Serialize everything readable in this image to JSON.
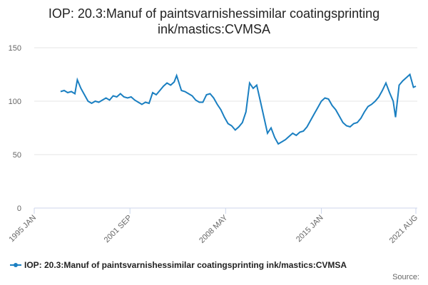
{
  "chart_data": {
    "type": "line",
    "title": "IOP: 20.3:Manuf of paintsvarnishessimilar coatingsprinting ink/mastics:CVMSA",
    "source": "Source:",
    "x": [
      "1996 NOV",
      "1997 FEB",
      "1997 MAY",
      "1997 AUG",
      "1997 NOV",
      "1998 JAN",
      "1998 APR",
      "1998 JUL",
      "1998 OCT",
      "1999 JAN",
      "1999 APR",
      "1999 JUL",
      "1999 OCT",
      "2000 JAN",
      "2000 APR",
      "2000 JUL",
      "2000 OCT",
      "2001 JAN",
      "2001 APR",
      "2001 JUL",
      "2001 OCT",
      "2002 JAN",
      "2002 APR",
      "2002 JUL",
      "2002 OCT",
      "2003 JAN",
      "2003 APR",
      "2003 JUL",
      "2003 OCT",
      "2004 JAN",
      "2004 APR",
      "2004 JUL",
      "2004 OCT",
      "2004 DEC",
      "2005 APR",
      "2005 JUL",
      "2005 OCT",
      "2006 JAN",
      "2006 APR",
      "2006 JUL",
      "2006 OCT",
      "2007 JAN",
      "2007 APR",
      "2007 JUL",
      "2007 OCT",
      "2008 JAN",
      "2008 APR",
      "2008 JUL",
      "2008 OCT",
      "2009 JAN",
      "2009 APR",
      "2009 JUL",
      "2009 OCT",
      "2010 JAN",
      "2010 APR",
      "2010 JUL",
      "2010 OCT",
      "2011 JAN",
      "2011 APR",
      "2011 JUL",
      "2011 OCT",
      "2012 JAN",
      "2012 APR",
      "2012 JUL",
      "2012 OCT",
      "2013 JAN",
      "2013 APR",
      "2013 JUL",
      "2013 OCT",
      "2014 JAN",
      "2014 APR",
      "2014 JUL",
      "2014 OCT",
      "2015 JAN",
      "2015 APR",
      "2015 JUL",
      "2015 OCT",
      "2016 JAN",
      "2016 APR",
      "2016 JUL",
      "2016 OCT",
      "2017 JAN",
      "2017 APR",
      "2017 JUL",
      "2017 OCT",
      "2018 JAN",
      "2018 APR",
      "2018 JUL",
      "2018 OCT",
      "2019 JAN",
      "2019 APR",
      "2019 JUL",
      "2019 OCT",
      "2020 JAN",
      "2020 MAR",
      "2020 JUN",
      "2020 SEP",
      "2020 DEC",
      "2021 MAR",
      "2021 JUN",
      "2021 AUG"
    ],
    "series": [
      {
        "name": "IOP: 20.3:Manuf of paintsvarnishessimilar coatingsprinting ink/mastics:CVMSA",
        "color": "#1a7fc1",
        "values": [
          109,
          110,
          108,
          109,
          107,
          120,
          112,
          106,
          100,
          98,
          100,
          99,
          101,
          103,
          101,
          105,
          104,
          107,
          104,
          103,
          104,
          101,
          99,
          97,
          99,
          98,
          108,
          106,
          110,
          114,
          117,
          115,
          118,
          124,
          110,
          109,
          107,
          105,
          101,
          99,
          99,
          106,
          107,
          103,
          97,
          92,
          85,
          79,
          77,
          73,
          76,
          80,
          90,
          117,
          112,
          115,
          100,
          85,
          70,
          75,
          66,
          60,
          62,
          64,
          67,
          70,
          68,
          71,
          72,
          76,
          82,
          88,
          94,
          100,
          103,
          102,
          96,
          92,
          86,
          80,
          77,
          76,
          79,
          80,
          84,
          90,
          95,
          97,
          100,
          104,
          110,
          117,
          108,
          100,
          85,
          115,
          119,
          122,
          125,
          113,
          114
        ]
      }
    ],
    "xlim": [
      "1995 JAN",
      "2021 AUG"
    ],
    "xticks": [
      "1995 JAN",
      "2001 SEP",
      "2008 MAY",
      "2015 JAN",
      "2021 AUG"
    ],
    "ylim": [
      0,
      150
    ],
    "yticks": [
      0,
      50,
      100,
      150
    ],
    "grid": true
  }
}
